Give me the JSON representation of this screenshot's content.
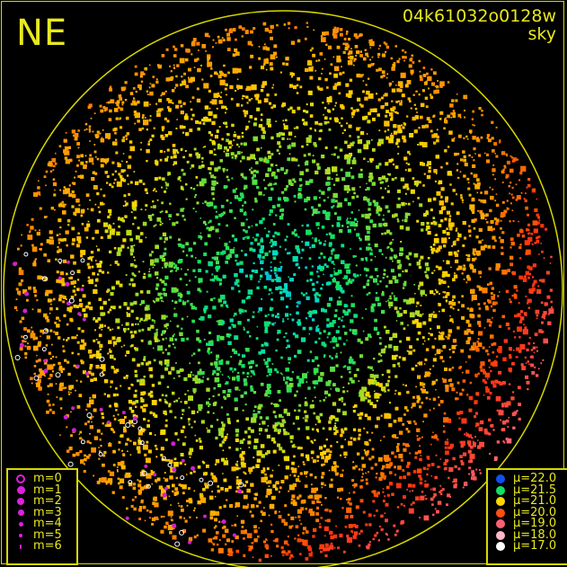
{
  "title": {
    "direction": "NE",
    "frame_id": "04k61032o0128w",
    "mode": "sky"
  },
  "chart_data": {
    "type": "scatter",
    "field_shape": "circle",
    "grid": false,
    "color_encodes": "mu",
    "size_encodes": "m",
    "size_legend": {
      "position": "bottom-left",
      "entries": [
        "m=0",
        "m=1",
        "m=2",
        "m=3",
        "m=4",
        "m=5",
        "m=6"
      ],
      "color": "#e020e0"
    },
    "color_legend": {
      "position": "bottom-right",
      "entries": [
        {
          "label": "μ=22.0",
          "mu": 22.0,
          "color": "#1050f0"
        },
        {
          "label": "μ=21.5",
          "mu": 21.5,
          "color": "#10e060"
        },
        {
          "label": "μ=21.0",
          "mu": 21.0,
          "color": "#ffd800"
        },
        {
          "label": "μ=20.0",
          "mu": 20.0,
          "color": "#ff5010"
        },
        {
          "label": "μ=19.0",
          "mu": 19.0,
          "color": "#ff6070"
        },
        {
          "label": "μ=18.0",
          "mu": 18.0,
          "color": "#ffb8c8"
        },
        {
          "label": "μ=17.0",
          "mu": 17.0,
          "color": "#ffffff"
        }
      ]
    },
    "mu_center": 21.7,
    "mu_edge_left_top": 20.5,
    "mu_edge_right": 20.0,
    "mu_edge_lower_right": 19.0
  },
  "colors": {
    "frame": "#d8d800",
    "background": "#000000"
  }
}
